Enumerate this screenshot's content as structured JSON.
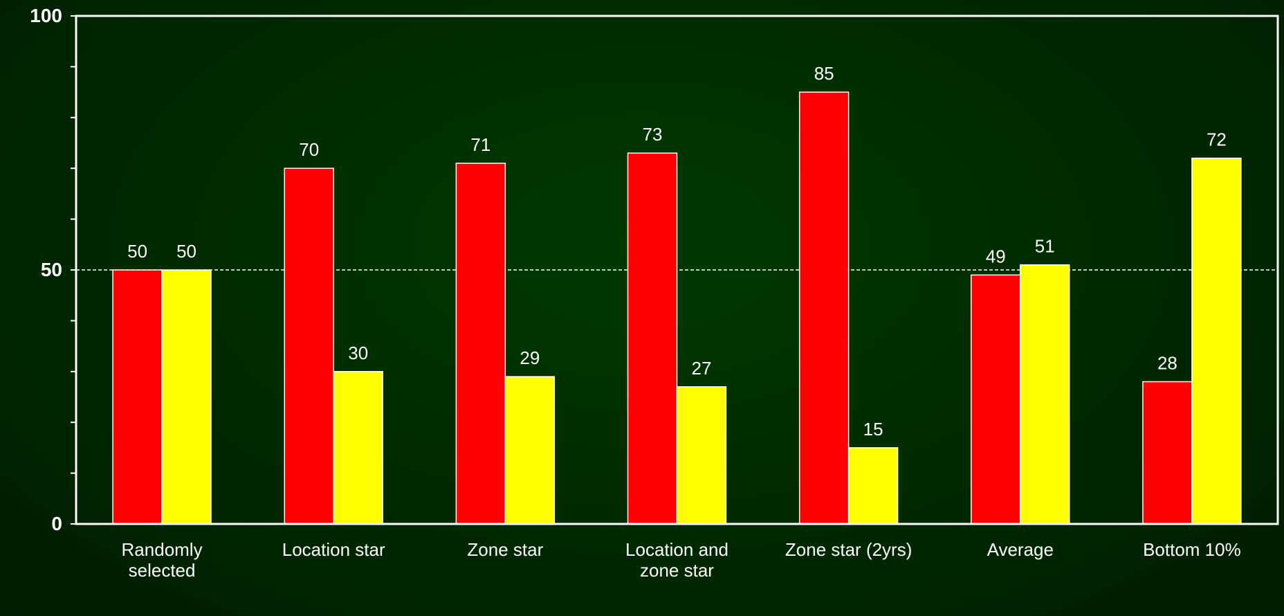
{
  "chart_data": {
    "type": "bar",
    "categories": [
      "Randomly selected",
      "Location star",
      "Zone star",
      "Location and zone star",
      "Zone star (2yrs)",
      "Average",
      "Bottom 10%"
    ],
    "series": [
      {
        "color": "#ff0000",
        "values": [
          50,
          70,
          71,
          73,
          85,
          49,
          28
        ]
      },
      {
        "color": "#ffff00",
        "values": [
          50,
          30,
          29,
          27,
          15,
          51,
          72
        ]
      }
    ],
    "ylim": [
      0,
      100
    ],
    "yticks": [
      0,
      50,
      100
    ],
    "minor_yticks": [
      10,
      20,
      30,
      40,
      60,
      70,
      80,
      90
    ],
    "reference_line": 50
  }
}
